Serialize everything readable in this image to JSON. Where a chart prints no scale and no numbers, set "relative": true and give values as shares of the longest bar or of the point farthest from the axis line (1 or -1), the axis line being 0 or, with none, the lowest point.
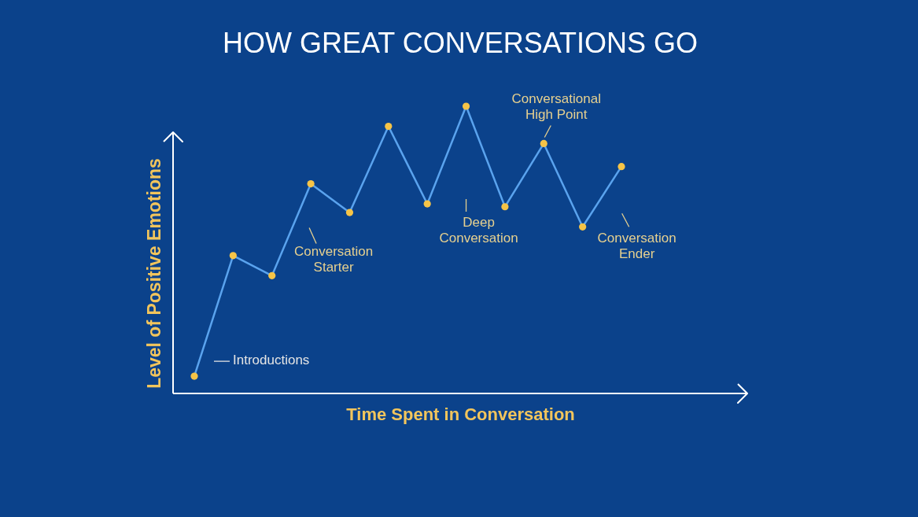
{
  "chart_data": {
    "type": "line",
    "title": "HOW GREAT CONVERSATIONS GO",
    "xlabel": "Time Spent in Conversation",
    "ylabel": "Level of Positive Emotions",
    "relative": true,
    "tick_labels": false,
    "marker": "circle",
    "line_style": "solid",
    "categories": [
      null,
      null,
      null,
      null,
      null,
      null,
      null,
      null,
      null,
      null,
      null,
      null
    ],
    "series": [
      {
        "color": "#5aa3ee",
        "values": [
          0.06,
          0.48,
          0.41,
          0.73,
          0.63,
          0.93,
          0.66,
          1,
          0.65,
          0.87,
          0.58,
          0.79
        ]
      }
    ],
    "annotations": [
      "Introductions",
      "Conversation\nStarter",
      "Deep\nConversation",
      "Conversational\nHigh Point",
      "Conversation\nEnder"
    ]
  }
}
